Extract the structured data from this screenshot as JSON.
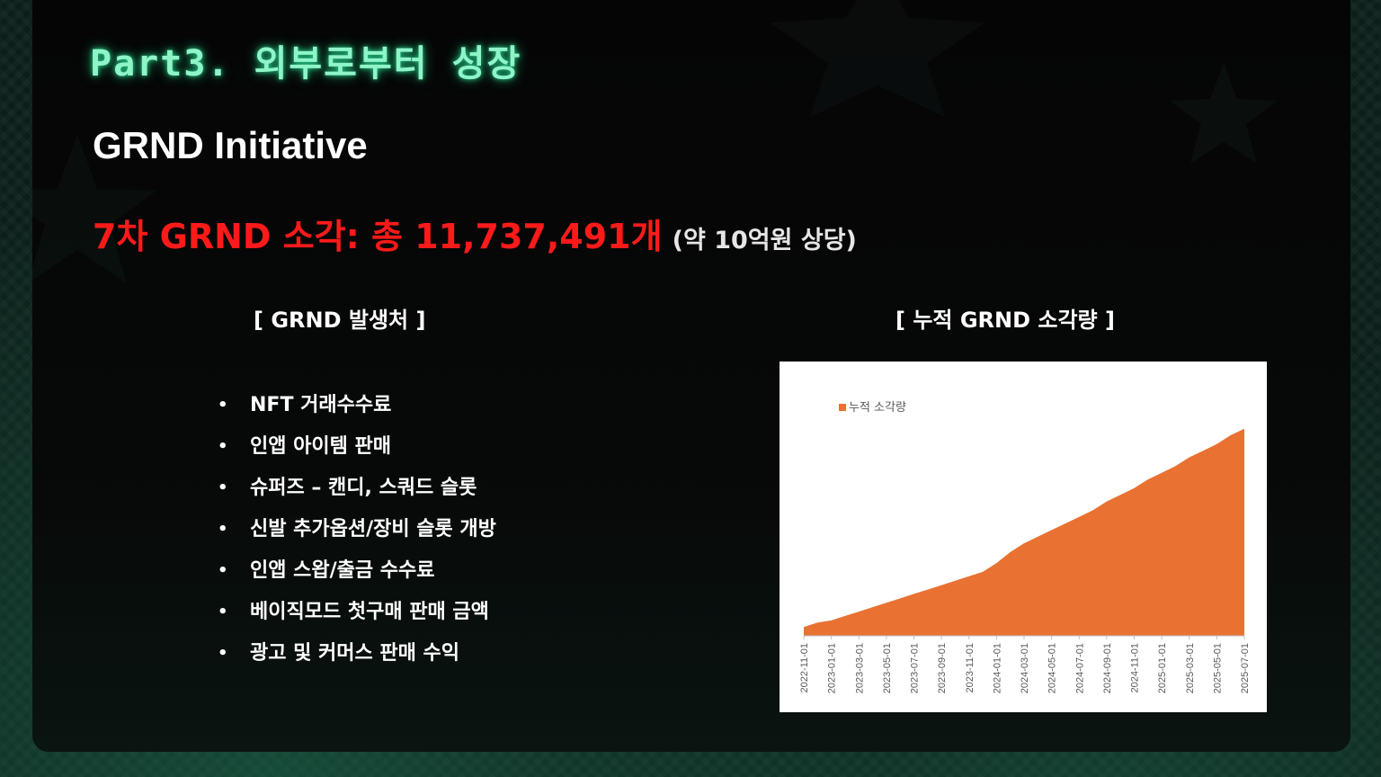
{
  "slide": {
    "part_title": "Part3. 외부로부터 성장",
    "section_title": "GRND Initiative",
    "burn_headline": "7차 GRND 소각: 총 11,737,491개",
    "burn_value_note": "(약 10억원 상당)"
  },
  "sources": {
    "header": "[ GRND 발생처 ]",
    "bullet": "•",
    "items": [
      "NFT 거래수수료",
      "인앱 아이템 판매",
      "슈퍼즈 – 캔디, 스쿼드 슬롯",
      "신발 추가옵션/장비 슬롯 개방",
      "인앱 스왑/출금 수수료",
      "베이직모드 첫구매 판매 금액",
      "광고 및 커머스 판매 수익"
    ]
  },
  "chart": {
    "header": "[ 누적 GRND 소각량 ]"
  },
  "colors": {
    "accent_green": "#8ff5c9",
    "burn_red": "#ff1a1a",
    "area_orange": "#e97132",
    "background": "#050505"
  },
  "chart_data": {
    "type": "area",
    "x": [
      "2022-11-01",
      "2022-12-01",
      "2023-01-01",
      "2023-02-01",
      "2023-03-01",
      "2023-04-01",
      "2023-05-01",
      "2023-06-01",
      "2023-07-01",
      "2023-08-01",
      "2023-09-01",
      "2023-10-01",
      "2023-11-01",
      "2023-12-01",
      "2024-01-01",
      "2024-02-01",
      "2024-03-01",
      "2024-04-01",
      "2024-05-01",
      "2024-06-01",
      "2024-07-01",
      "2024-08-01",
      "2024-09-01",
      "2024-10-01",
      "2024-11-01",
      "2024-12-01",
      "2025-01-01",
      "2025-02-01",
      "2025-03-01",
      "2025-04-01",
      "2025-05-01",
      "2025-06-01",
      "2025-07-01"
    ],
    "tick_labels": [
      "2022-11-01",
      "2023-01-01",
      "2023-03-01",
      "2023-05-01",
      "2023-07-01",
      "2023-09-01",
      "2023-11-01",
      "2024-01-01",
      "2024-03-01",
      "2024-05-01",
      "2024-07-01",
      "2024-09-01",
      "2024-11-01",
      "2025-01-01",
      "2025-03-01",
      "2025-05-01",
      "2025-07-01"
    ],
    "series": [
      {
        "name": "누적 소각량",
        "values": [
          0.04,
          0.06,
          0.07,
          0.09,
          0.11,
          0.13,
          0.15,
          0.17,
          0.19,
          0.21,
          0.23,
          0.25,
          0.27,
          0.29,
          0.33,
          0.38,
          0.42,
          0.45,
          0.48,
          0.51,
          0.54,
          0.57,
          0.61,
          0.64,
          0.67,
          0.71,
          0.74,
          0.77,
          0.81,
          0.84,
          0.87,
          0.91,
          0.94
        ]
      }
    ],
    "xlabel": "",
    "ylabel": "",
    "ylim": [
      0,
      1
    ],
    "legend_position": "top-left",
    "grid": false
  }
}
